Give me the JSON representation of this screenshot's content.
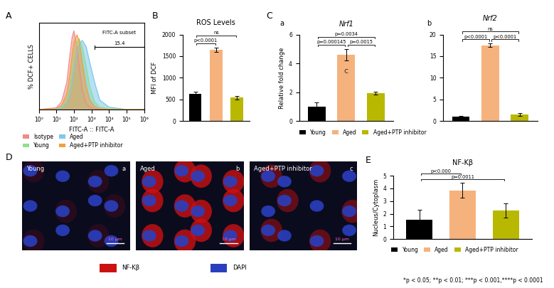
{
  "chart_data": [
    {
      "type": "area",
      "panel_label": "A",
      "title": null,
      "x_label": "FITC-A :: FITC-A",
      "y_label": "% DCF+ CELLS",
      "log": "x",
      "tick_labels": "x",
      "legend": "below",
      "x": [
        1,
        10,
        20,
        40,
        60,
        80,
        100,
        150,
        200,
        300,
        500,
        800,
        1500,
        3000,
        10000,
        100000,
        1000000
      ],
      "series": [
        {
          "name": "Isotype",
          "color": "#f08a8a",
          "values": [
            0,
            2,
            10,
            35,
            70,
            92,
            100,
            80,
            55,
            25,
            8,
            3,
            1,
            0,
            0,
            0,
            0
          ]
        },
        {
          "name": "Young",
          "color": "#8fe08f",
          "values": [
            0,
            0,
            3,
            12,
            30,
            50,
            68,
            85,
            90,
            80,
            55,
            30,
            10,
            3,
            1,
            0,
            0
          ]
        },
        {
          "name": "Aged",
          "color": "#7ec8ec",
          "values": [
            0,
            0,
            2,
            8,
            20,
            35,
            50,
            70,
            82,
            88,
            80,
            60,
            35,
            12,
            3,
            0,
            0
          ]
        },
        {
          "name": "Aged+PTP inhibitor",
          "color": "#f0a040",
          "values": [
            0,
            1,
            5,
            20,
            45,
            70,
            85,
            95,
            88,
            60,
            30,
            12,
            4,
            1,
            0,
            0,
            0
          ]
        }
      ],
      "xlim": [
        1,
        1000000
      ],
      "ylim": [
        0,
        110
      ],
      "xticks": [
        {
          "value": 1,
          "label": "10⁰"
        },
        {
          "value": 10,
          "label": "10¹"
        },
        {
          "value": 100,
          "label": "10²"
        },
        {
          "value": 1000,
          "label": "10³"
        },
        {
          "value": 10000,
          "label": "10⁴"
        },
        {
          "value": 100000,
          "label": "10⁵"
        },
        {
          "value": 1000000,
          "label": "10⁶"
        }
      ],
      "gate": {
        "label": "FITC-A subset",
        "value": 15.4,
        "range": [
          1500,
          1000000
        ]
      }
    },
    {
      "type": "bar",
      "panel_label": "B",
      "title": "ROS Levels",
      "y_label": "MFI of DCF",
      "categories": [
        "Young",
        "Aged",
        "Aged+PTP inhibitor"
      ],
      "values": [
        620,
        1650,
        540
      ],
      "errors": [
        50,
        50,
        40
      ],
      "colors": [
        "#000000",
        "#f6b27c",
        "#b8b800"
      ],
      "tick_labels": "y",
      "ylim": [
        0,
        2000
      ],
      "yticks": [
        0,
        500,
        1000,
        1500,
        2000
      ],
      "significance": [
        [
          {
            "text": "p<0.0001",
            "pair": [
              0,
              1
            ]
          }
        ],
        [
          {
            "text": "ns",
            "pair": [
              0,
              2
            ]
          }
        ]
      ]
    },
    {
      "type": "bar",
      "panel_label": "C",
      "subpanel_label": "a",
      "title": "Nrf1",
      "y_label": "Relative fold change",
      "categories": [
        "Young",
        "Aged",
        "Aged+PTP inhibitor"
      ],
      "values": [
        1.0,
        4.6,
        1.95
      ],
      "errors": [
        0.3,
        0.4,
        0.1
      ],
      "colors": [
        "#000000",
        "#f6b27c",
        "#b8b800"
      ],
      "tick_labels": "y",
      "legend": "below",
      "ylim": [
        0,
        6
      ],
      "yticks": [
        0,
        2,
        4,
        6
      ],
      "bar_note": {
        "text": "c",
        "bar": 1
      },
      "significance": [
        [
          {
            "text": "p=0.000145",
            "pair": [
              0,
              1
            ]
          },
          {
            "text": "p=0.0015",
            "pair": [
              1,
              2
            ]
          }
        ],
        [
          {
            "text": "p=0.0034",
            "pair": [
              0,
              2
            ]
          }
        ]
      ]
    },
    {
      "type": "bar",
      "subpanel_label": "b",
      "title": "Nrf2",
      "categories": [
        "Young",
        "Aged",
        "Aged+PTP inhibitor"
      ],
      "values": [
        1.0,
        17.5,
        1.5
      ],
      "errors": [
        0.2,
        0.4,
        0.3
      ],
      "colors": [
        "#000000",
        "#f6b27c",
        "#b8b800"
      ],
      "tick_labels": "y",
      "ylim": [
        0,
        20
      ],
      "yticks": [
        0,
        5,
        10,
        15,
        20
      ],
      "significance": [
        [
          {
            "text": "p<0.0001",
            "pair": [
              0,
              1
            ]
          },
          {
            "text": "p<0.0001",
            "pair": [
              1,
              2
            ]
          }
        ],
        [
          {
            "text": "ns",
            "pair": [
              0,
              2
            ]
          }
        ]
      ]
    },
    {
      "type": "bar",
      "panel_label": "E",
      "title": "NF-Kβ",
      "y_label": "Nucleus/Cytoplasm",
      "categories": [
        "Young",
        "Aged",
        "Aged+PTP inhibitor"
      ],
      "values": [
        1.55,
        3.85,
        2.25
      ],
      "errors": [
        0.75,
        0.6,
        0.55
      ],
      "colors": [
        "#000000",
        "#f6b27c",
        "#b8b800"
      ],
      "tick_labels": "y",
      "legend": "below",
      "ylim": [
        0,
        5
      ],
      "yticks": [
        0,
        1,
        2,
        3,
        4,
        5
      ],
      "significance": [
        [
          {
            "text": "p=0.0011",
            "pair": [
              0,
              2
            ]
          }
        ],
        [
          {
            "text": "p<0.000",
            "pair": [
              0,
              1
            ]
          }
        ]
      ]
    }
  ],
  "images": {
    "panel_label": "D",
    "panels": [
      {
        "label": "Young",
        "sublabel": "a"
      },
      {
        "label": "Aged",
        "sublabel": "b"
      },
      {
        "label": "Aged+PTP inhibitor",
        "sublabel": "c"
      }
    ],
    "scale_bar": "10 µm",
    "legend": [
      {
        "name": "NF-Kβ",
        "color": "#cc1111"
      },
      {
        "name": "DAPI",
        "color": "#2a3fbf"
      }
    ]
  },
  "footnote": "*p < 0.05; **p < 0.01; ***p < 0.001,****p < 0.0001"
}
